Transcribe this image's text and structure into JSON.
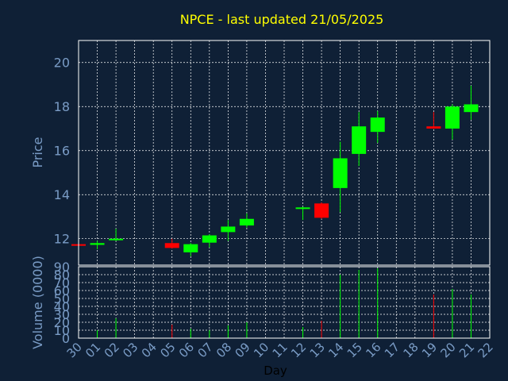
{
  "chart_data": {
    "type": "candlestick",
    "title": "NPCE - last updated 21/05/2025",
    "xlabel": "Day",
    "ylabel_price": "Price",
    "ylabel_volume": "Volume (0000)",
    "x_ticks": [
      "30",
      "01",
      "02",
      "03",
      "04",
      "05",
      "06",
      "07",
      "08",
      "09",
      "10",
      "11",
      "12",
      "13",
      "14",
      "15",
      "16",
      "17",
      "18",
      "19",
      "20",
      "21",
      "22"
    ],
    "price_ylim": [
      10.8,
      21.0
    ],
    "price_ticks": [
      12,
      14,
      16,
      18,
      20
    ],
    "volume_ylim": [
      0,
      90
    ],
    "volume_ticks": [
      0,
      10,
      20,
      30,
      40,
      50,
      60,
      70,
      80,
      90
    ],
    "candles": [
      {
        "day": 0,
        "open": 11.75,
        "high": 11.78,
        "low": 11.72,
        "close": 11.7,
        "volume": 0
      },
      {
        "day": 1,
        "open": 11.72,
        "high": 11.9,
        "low": 11.52,
        "close": 11.8,
        "volume": 10
      },
      {
        "day": 2,
        "open": 11.95,
        "high": 12.45,
        "low": 11.9,
        "close": 12.0,
        "volume": 25
      },
      {
        "day": 5,
        "open": 11.8,
        "high": 12.0,
        "low": 11.55,
        "close": 11.58,
        "volume": 17
      },
      {
        "day": 6,
        "open": 11.38,
        "high": 11.8,
        "low": 11.2,
        "close": 11.75,
        "volume": 12
      },
      {
        "day": 7,
        "open": 11.82,
        "high": 12.2,
        "low": 11.6,
        "close": 12.15,
        "volume": 10
      },
      {
        "day": 8,
        "open": 12.3,
        "high": 12.85,
        "low": 11.9,
        "close": 12.55,
        "volume": 16
      },
      {
        "day": 9,
        "open": 12.6,
        "high": 13.15,
        "low": 12.5,
        "close": 12.9,
        "volume": 20
      },
      {
        "day": 12,
        "open": 13.38,
        "high": 13.45,
        "low": 12.85,
        "close": 13.42,
        "volume": 14
      },
      {
        "day": 13,
        "open": 13.6,
        "high": 13.65,
        "low": 12.9,
        "close": 12.95,
        "volume": 22
      },
      {
        "day": 14,
        "open": 14.3,
        "high": 16.4,
        "low": 13.2,
        "close": 15.65,
        "volume": 80
      },
      {
        "day": 15,
        "open": 15.85,
        "high": 17.75,
        "low": 15.3,
        "close": 17.1,
        "volume": 86
      },
      {
        "day": 16,
        "open": 16.85,
        "high": 17.8,
        "low": 16.35,
        "close": 17.5,
        "volume": 88
      },
      {
        "day": 19,
        "open": 17.1,
        "high": 17.75,
        "low": 16.98,
        "close": 17.0,
        "volume": 55
      },
      {
        "day": 20,
        "open": 17.0,
        "high": 18.1,
        "low": 16.5,
        "close": 18.0,
        "volume": 62
      },
      {
        "day": 21,
        "open": 17.75,
        "high": 18.95,
        "low": 17.4,
        "close": 18.1,
        "volume": 55
      }
    ],
    "grid": true,
    "colors": {
      "background": "#0f2036",
      "up": "#00ff00",
      "down": "#ff0000",
      "axis_text": "#7a9cc6",
      "title": "#ffff00",
      "grid": "#ffffff",
      "frame": "#ffffff"
    }
  }
}
